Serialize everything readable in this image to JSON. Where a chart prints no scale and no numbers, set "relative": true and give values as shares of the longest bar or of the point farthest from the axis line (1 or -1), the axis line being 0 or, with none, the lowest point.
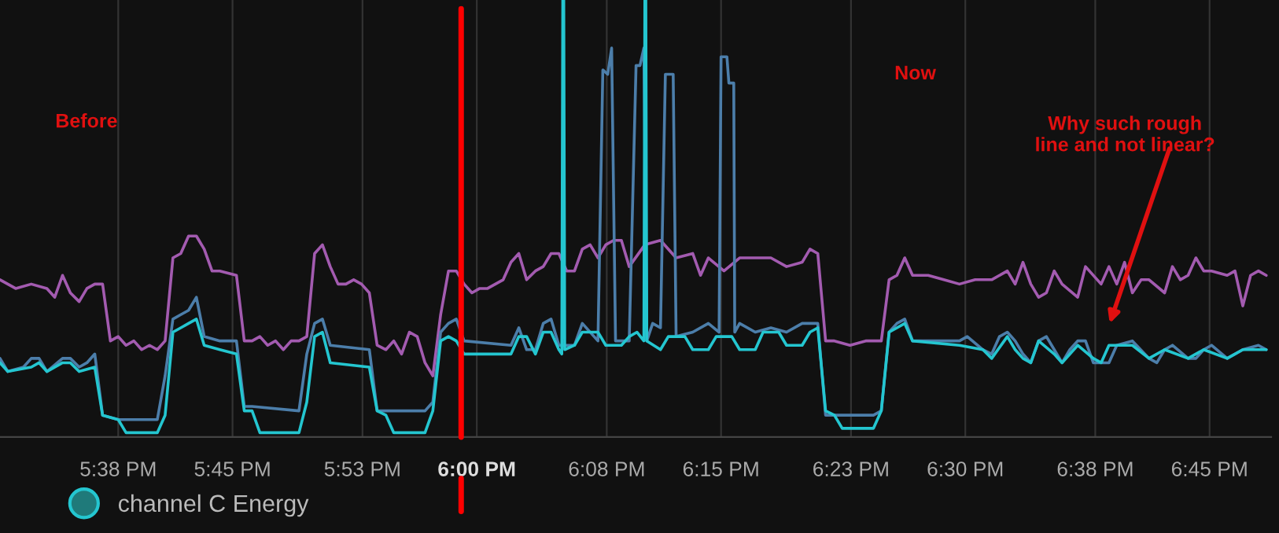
{
  "chart_data": {
    "type": "line",
    "relative": true,
    "grid": "x",
    "legend": "bottom left",
    "xlim": [
      17.512,
      18.813
    ],
    "xticks": [
      {
        "value": 17.633,
        "label": "5:38 PM"
      },
      {
        "value": 17.75,
        "label": "5:45 PM"
      },
      {
        "value": 17.883,
        "label": "5:53 PM"
      },
      {
        "value": 18.0,
        "label": "6:00 PM"
      },
      {
        "value": 18.133,
        "label": "6:08 PM"
      },
      {
        "value": 18.25,
        "label": "6:15 PM"
      },
      {
        "value": 18.383,
        "label": "6:23 PM"
      },
      {
        "value": 18.5,
        "label": "6:30 PM"
      },
      {
        "value": 18.633,
        "label": "6:38 PM"
      },
      {
        "value": 18.75,
        "label": "6:45 PM"
      }
    ],
    "series": [
      {
        "color": "#a35bb0",
        "x": [
          17.512,
          17.528,
          17.544,
          17.56,
          17.568,
          17.576,
          17.584,
          17.593,
          17.601,
          17.609,
          17.617,
          17.625,
          17.633,
          17.641,
          17.649,
          17.657,
          17.665,
          17.673,
          17.681,
          17.689,
          17.697,
          17.705,
          17.713,
          17.721,
          17.729,
          17.737,
          17.754,
          17.762,
          17.77,
          17.778,
          17.786,
          17.794,
          17.802,
          17.81,
          17.818,
          17.826,
          17.834,
          17.842,
          17.85,
          17.858,
          17.866,
          17.874,
          17.882,
          17.89,
          17.898,
          17.907,
          17.915,
          17.923,
          17.931,
          17.939,
          17.947,
          17.955,
          17.963,
          17.971,
          17.979,
          17.987,
          17.995,
          18.003,
          18.011,
          18.019,
          18.027,
          18.035,
          18.043,
          18.051,
          18.06,
          18.068,
          18.076,
          18.084,
          18.092,
          18.1,
          18.108,
          18.116,
          18.124,
          18.132,
          18.14,
          18.148,
          18.156,
          18.172,
          18.188,
          18.204,
          18.221,
          18.229,
          18.237,
          18.253,
          18.269,
          18.285,
          18.301,
          18.317,
          18.333,
          18.341,
          18.349,
          18.357,
          18.366,
          18.382,
          18.398,
          18.414,
          18.422,
          18.43,
          18.438,
          18.446,
          18.462,
          18.478,
          18.494,
          18.51,
          18.527,
          18.543,
          18.551,
          18.559,
          18.567,
          18.575,
          18.583,
          18.591,
          18.599,
          18.615,
          18.623,
          18.639,
          18.647,
          18.655,
          18.663,
          18.671,
          18.68,
          18.688,
          18.704,
          18.712,
          18.72,
          18.728,
          18.736,
          18.744,
          18.752,
          18.768,
          18.776,
          18.784,
          18.792,
          18.8,
          18.808
        ],
        "values": [
          0.36,
          0.34,
          0.35,
          0.34,
          0.32,
          0.37,
          0.33,
          0.31,
          0.34,
          0.35,
          0.35,
          0.22,
          0.23,
          0.21,
          0.22,
          0.2,
          0.21,
          0.2,
          0.22,
          0.41,
          0.42,
          0.46,
          0.46,
          0.43,
          0.38,
          0.38,
          0.37,
          0.22,
          0.22,
          0.23,
          0.21,
          0.22,
          0.2,
          0.22,
          0.22,
          0.23,
          0.42,
          0.44,
          0.39,
          0.35,
          0.35,
          0.36,
          0.35,
          0.33,
          0.21,
          0.2,
          0.22,
          0.19,
          0.24,
          0.23,
          0.17,
          0.14,
          0.28,
          0.38,
          0.38,
          0.35,
          0.33,
          0.34,
          0.34,
          0.35,
          0.36,
          0.4,
          0.42,
          0.36,
          0.38,
          0.39,
          0.42,
          0.42,
          0.38,
          0.38,
          0.43,
          0.44,
          0.41,
          0.44,
          0.45,
          0.45,
          0.39,
          0.44,
          0.45,
          0.41,
          0.42,
          0.37,
          0.41,
          0.38,
          0.41,
          0.41,
          0.41,
          0.39,
          0.4,
          0.43,
          0.42,
          0.22,
          0.22,
          0.21,
          0.22,
          0.22,
          0.36,
          0.37,
          0.41,
          0.37,
          0.37,
          0.36,
          0.35,
          0.36,
          0.36,
          0.38,
          0.35,
          0.4,
          0.35,
          0.32,
          0.33,
          0.38,
          0.35,
          0.32,
          0.39,
          0.35,
          0.39,
          0.35,
          0.4,
          0.33,
          0.36,
          0.36,
          0.33,
          0.39,
          0.36,
          0.37,
          0.41,
          0.38,
          0.38,
          0.37,
          0.38,
          0.3,
          0.37,
          0.38,
          0.37
        ]
      },
      {
        "color": "#4c7eaa",
        "x": [
          17.512,
          17.52,
          17.536,
          17.544,
          17.552,
          17.56,
          17.576,
          17.584,
          17.593,
          17.601,
          17.609,
          17.617,
          17.633,
          17.673,
          17.681,
          17.689,
          17.697,
          17.705,
          17.713,
          17.721,
          17.737,
          17.754,
          17.762,
          17.77,
          17.818,
          17.826,
          17.834,
          17.842,
          17.85,
          17.89,
          17.898,
          17.947,
          17.955,
          17.963,
          17.971,
          17.979,
          17.987,
          18.035,
          18.043,
          18.051,
          18.06,
          18.068,
          18.076,
          18.084,
          18.1,
          18.108,
          18.124,
          18.129,
          18.134,
          18.138,
          18.142,
          18.156,
          18.163,
          18.167,
          18.171,
          18.174,
          18.18,
          18.188,
          18.193,
          18.201,
          18.204,
          18.221,
          18.237,
          18.248,
          18.25,
          18.256,
          18.258,
          18.263,
          18.264,
          18.269,
          18.285,
          18.301,
          18.317,
          18.333,
          18.349,
          18.357,
          18.406,
          18.414,
          18.422,
          18.43,
          18.438,
          18.446,
          18.494,
          18.502,
          18.518,
          18.527,
          18.535,
          18.543,
          18.551,
          18.559,
          18.567,
          18.575,
          18.583,
          18.591,
          18.599,
          18.607,
          18.615,
          18.623,
          18.631,
          18.647,
          18.655,
          18.671,
          18.688,
          18.696,
          18.704,
          18.712,
          18.728,
          18.736,
          18.744,
          18.752,
          18.768,
          18.776,
          18.784,
          18.8,
          18.808
        ],
        "values": [
          0.18,
          0.15,
          0.16,
          0.18,
          0.18,
          0.15,
          0.18,
          0.18,
          0.16,
          0.17,
          0.19,
          0.05,
          0.04,
          0.04,
          0.14,
          0.27,
          0.28,
          0.29,
          0.32,
          0.23,
          0.22,
          0.22,
          0.07,
          0.07,
          0.06,
          0.19,
          0.26,
          0.27,
          0.21,
          0.2,
          0.06,
          0.06,
          0.08,
          0.24,
          0.26,
          0.27,
          0.22,
          0.21,
          0.25,
          0.2,
          0.2,
          0.26,
          0.27,
          0.21,
          0.21,
          0.26,
          0.22,
          0.84,
          0.83,
          0.89,
          0.22,
          0.22,
          0.85,
          0.85,
          0.89,
          0.22,
          0.26,
          0.25,
          0.83,
          0.83,
          0.23,
          0.24,
          0.26,
          0.24,
          0.87,
          0.87,
          0.81,
          0.81,
          0.24,
          0.26,
          0.24,
          0.25,
          0.24,
          0.26,
          0.26,
          0.05,
          0.05,
          0.06,
          0.24,
          0.26,
          0.27,
          0.22,
          0.22,
          0.23,
          0.2,
          0.19,
          0.23,
          0.24,
          0.22,
          0.19,
          0.17,
          0.22,
          0.23,
          0.2,
          0.17,
          0.2,
          0.22,
          0.22,
          0.17,
          0.17,
          0.21,
          0.22,
          0.18,
          0.17,
          0.2,
          0.21,
          0.18,
          0.18,
          0.2,
          0.21,
          0.18,
          0.19,
          0.2,
          0.21,
          0.2
        ]
      },
      {
        "name": "channel C Energy",
        "color": "#24c6d0",
        "x": [
          17.512,
          17.52,
          17.544,
          17.552,
          17.56,
          17.576,
          17.584,
          17.593,
          17.609,
          17.617,
          17.633,
          17.641,
          17.673,
          17.681,
          17.689,
          17.697,
          17.705,
          17.713,
          17.721,
          17.737,
          17.754,
          17.762,
          17.77,
          17.778,
          17.818,
          17.826,
          17.834,
          17.842,
          17.85,
          17.89,
          17.898,
          17.907,
          17.915,
          17.947,
          17.955,
          17.963,
          17.971,
          17.979,
          17.987,
          18.035,
          18.043,
          18.051,
          18.06,
          18.068,
          18.076,
          18.084,
          18.087,
          18.088,
          18.089,
          18.09,
          18.1,
          18.108,
          18.124,
          18.132,
          18.148,
          18.156,
          18.164,
          18.171,
          18.172,
          18.173,
          18.174,
          18.188,
          18.196,
          18.213,
          18.221,
          18.237,
          18.245,
          18.261,
          18.269,
          18.285,
          18.293,
          18.309,
          18.317,
          18.333,
          18.341,
          18.349,
          18.357,
          18.366,
          18.374,
          18.406,
          18.414,
          18.422,
          18.43,
          18.438,
          18.446,
          18.494,
          18.518,
          18.527,
          18.543,
          18.551,
          18.559,
          18.567,
          18.575,
          18.591,
          18.599,
          18.615,
          18.631,
          18.639,
          18.647,
          18.671,
          18.688,
          18.704,
          18.728,
          18.744,
          18.768,
          18.784,
          18.808
        ],
        "values": [
          0.17,
          0.15,
          0.16,
          0.17,
          0.15,
          0.17,
          0.17,
          0.15,
          0.16,
          0.05,
          0.04,
          0.01,
          0.01,
          0.05,
          0.24,
          0.25,
          0.26,
          0.27,
          0.21,
          0.2,
          0.19,
          0.06,
          0.06,
          0.01,
          0.01,
          0.08,
          0.23,
          0.24,
          0.17,
          0.16,
          0.06,
          0.05,
          0.01,
          0.01,
          0.06,
          0.22,
          0.23,
          0.22,
          0.19,
          0.19,
          0.23,
          0.23,
          0.19,
          0.24,
          0.24,
          0.2,
          0.19,
          1.0,
          1.0,
          0.2,
          0.21,
          0.24,
          0.24,
          0.21,
          0.21,
          0.23,
          0.24,
          0.22,
          1.0,
          1.0,
          0.22,
          0.2,
          0.23,
          0.23,
          0.2,
          0.2,
          0.23,
          0.23,
          0.2,
          0.2,
          0.24,
          0.24,
          0.21,
          0.21,
          0.24,
          0.25,
          0.06,
          0.05,
          0.02,
          0.02,
          0.06,
          0.24,
          0.25,
          0.26,
          0.22,
          0.21,
          0.2,
          0.18,
          0.23,
          0.2,
          0.18,
          0.17,
          0.22,
          0.19,
          0.17,
          0.21,
          0.18,
          0.17,
          0.21,
          0.21,
          0.18,
          0.2,
          0.18,
          0.2,
          0.18,
          0.2,
          0.2
        ]
      }
    ],
    "ref_lines": [
      {
        "axis": "x",
        "value": 17.984,
        "color": "#ff0000"
      }
    ],
    "annotations": [
      "Before",
      "Now",
      "Why such rough\nline and not linear?"
    ]
  }
}
